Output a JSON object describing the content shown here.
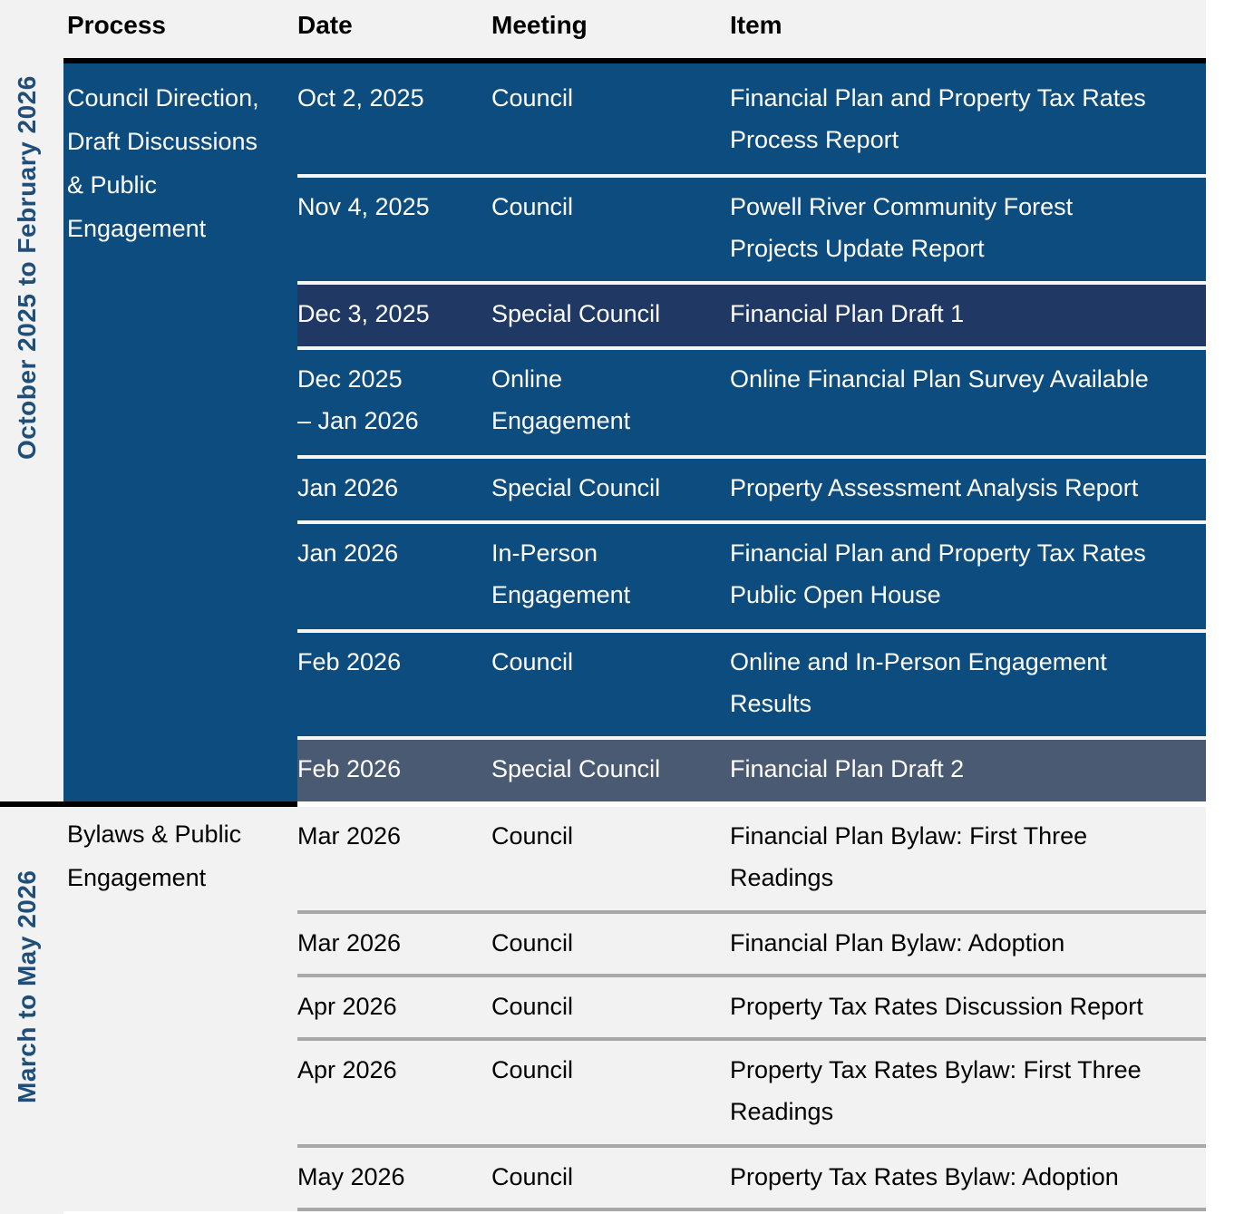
{
  "table": {
    "columns": [
      "Process",
      "Date",
      "Meeting",
      "Item"
    ],
    "sections": [
      {
        "side_label": "October 2025 to February 2026",
        "process": "Council Direction,\nDraft Discussions\n& Public\nEngagement",
        "rows": [
          {
            "date": "Oct 2, 2025",
            "meeting": "Council",
            "item": "Financial Plan and Property Tax Rates\nProcess Report",
            "highlight": "none"
          },
          {
            "date": "Nov 4, 2025",
            "meeting": "Council",
            "item": "Powell River Community Forest\nProjects Update Report",
            "highlight": "none"
          },
          {
            "date": "Dec 3, 2025",
            "meeting": "Special Council",
            "item": "Financial Plan Draft 1",
            "highlight": "navy"
          },
          {
            "date": "Dec 2025\n– Jan 2026",
            "meeting": "Online\nEngagement",
            "item": "Online Financial Plan Survey Available",
            "highlight": "none"
          },
          {
            "date": "Jan 2026",
            "meeting": "Special Council",
            "item": "Property Assessment Analysis Report",
            "highlight": "none"
          },
          {
            "date": "Jan 2026",
            "meeting": "In-Person\nEngagement",
            "item": "Financial Plan and Property Tax Rates\nPublic Open House",
            "highlight": "none"
          },
          {
            "date": "Feb 2026",
            "meeting": "Council",
            "item": "Online and In-Person Engagement\nResults",
            "highlight": "none"
          },
          {
            "date": "Feb 2026",
            "meeting": "Special Council",
            "item": "Financial Plan Draft 2",
            "highlight": "gray"
          }
        ]
      },
      {
        "side_label": "March to May 2026",
        "process": "Bylaws & Public\nEngagement",
        "rows": [
          {
            "date": "Mar 2026",
            "meeting": "Council",
            "item": "Financial Plan Bylaw: First Three\nReadings",
            "highlight": "none"
          },
          {
            "date": "Mar 2026",
            "meeting": "Council",
            "item": "Financial Plan Bylaw: Adoption",
            "highlight": "none"
          },
          {
            "date": "Apr 2026",
            "meeting": "Council",
            "item": "Property Tax Rates Discussion Report",
            "highlight": "none"
          },
          {
            "date": "Apr 2026",
            "meeting": "Council",
            "item": "Property Tax Rates Bylaw: First Three\nReadings",
            "highlight": "none"
          },
          {
            "date": "May 2026",
            "meeting": "Council",
            "item": "Property Tax Rates Bylaw: Adoption",
            "highlight": "none"
          }
        ]
      }
    ]
  },
  "colors": {
    "section_blue": "#0d4c7e",
    "highlight_navy": "#1f3864",
    "highlight_slate_gray": "#4a5a73",
    "side_label_blue": "#1f4e79",
    "light_background": "#f2f2f2",
    "separator_gray": "#a8a8a8",
    "separator_white": "#f5f5f5",
    "rule_black": "#000000"
  }
}
